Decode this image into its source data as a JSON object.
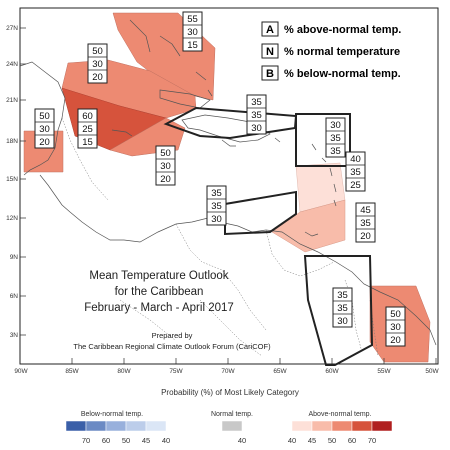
{
  "map": {
    "lat_ticks": [
      "27N",
      "24N",
      "21N",
      "18N",
      "15N",
      "12N",
      "9N",
      "6N",
      "3N"
    ],
    "lon_ticks": [
      "90W",
      "85W",
      "80W",
      "75W",
      "70W",
      "65W",
      "60W",
      "55W",
      "50W"
    ],
    "regions": [
      {
        "id": "bahamas",
        "a": "55",
        "n": "30",
        "b": "15"
      },
      {
        "id": "cuba",
        "a": "50",
        "n": "30",
        "b": "20"
      },
      {
        "id": "mexico-yucatan",
        "a": "50",
        "n": "30",
        "b": "20"
      },
      {
        "id": "cayman-jamaica",
        "a": "60",
        "n": "25",
        "b": "15"
      },
      {
        "id": "caribbean-sea-central",
        "a": "50",
        "n": "30",
        "b": "20"
      },
      {
        "id": "hispaniola",
        "a": "35",
        "n": "35",
        "b": "30"
      },
      {
        "id": "leeward-islands",
        "a": "30",
        "n": "35",
        "b": "35"
      },
      {
        "id": "windward-islands",
        "a": "40",
        "n": "35",
        "b": "25"
      },
      {
        "id": "colombia-coast",
        "a": "35",
        "n": "35",
        "b": "30"
      },
      {
        "id": "trinidad",
        "a": "45",
        "n": "35",
        "b": "20"
      },
      {
        "id": "guyana",
        "a": "35",
        "n": "35",
        "b": "30"
      },
      {
        "id": "suriname-guiana",
        "a": "50",
        "n": "30",
        "b": "20"
      }
    ],
    "colors": {
      "above_40": "#fde0d8",
      "above_45": "#f8bcaa",
      "above_50": "#ed8a72",
      "above_60": "#d6533c",
      "above_70": "#b01f1f",
      "normal": "#c8c8c8",
      "below_70": "#3a5fa8",
      "below_60": "#6b8ac4",
      "below_50": "#98b0dc",
      "below_45": "#bccdea",
      "below_40": "#dbe6f6"
    }
  },
  "key": {
    "a_letter": "A",
    "a_text": "% above-normal temp.",
    "n_letter": "N",
    "n_text": "% normal temperature",
    "b_letter": "B",
    "b_text": "% below-normal temp."
  },
  "title": {
    "line1": "Mean Temperature Outlook",
    "line2": "for the Caribbean",
    "line3": "February - March - April 2017",
    "prepared1": "Prepared by",
    "prepared2": "The Caribbean Regional Climate Outlook Forum (CariCOF)"
  },
  "legend": {
    "heading": "Probability (%) of Most Likely Category",
    "below_label": "Below-normal temp.",
    "below_ticks": [
      "70",
      "60",
      "50",
      "45",
      "40"
    ],
    "normal_label": "Normal temp.",
    "normal_tick": "40",
    "above_label": "Above-normal temp.",
    "above_ticks": [
      "40",
      "45",
      "50",
      "60",
      "70"
    ]
  }
}
